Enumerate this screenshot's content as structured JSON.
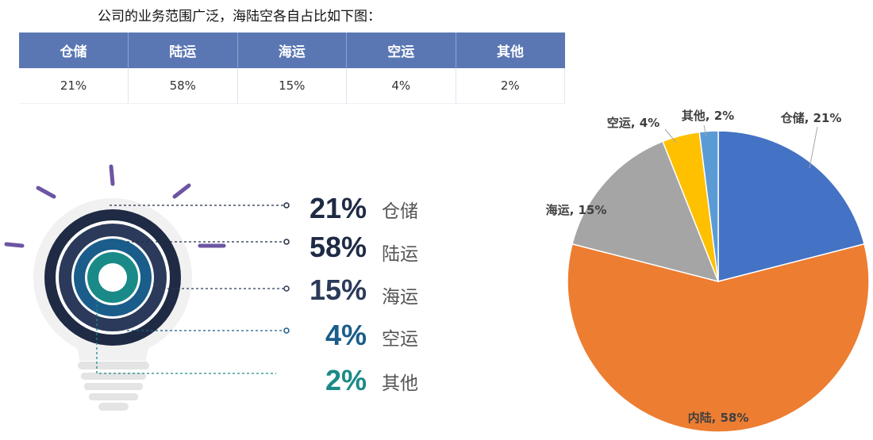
{
  "intro_text": "公司的业务范围广泛，海陆空各自占比如下图：",
  "table": {
    "headers": [
      "仓储",
      "陆运",
      "海运",
      "空运",
      "其他"
    ],
    "values": [
      "21%",
      "58%",
      "15%",
      "4%",
      "2%"
    ]
  },
  "infographic": [
    {
      "pct": "21%",
      "label": "仓储",
      "color": "#1f2a44"
    },
    {
      "pct": "58%",
      "label": "陆运",
      "color": "#1f2a44"
    },
    {
      "pct": "15%",
      "label": "海运",
      "color": "#2b3a5a"
    },
    {
      "pct": "4%",
      "label": "空运",
      "color": "#1a5d8a"
    },
    {
      "pct": "2%",
      "label": "其他",
      "color": "#1a8a88"
    }
  ],
  "chart_data": {
    "type": "pie",
    "slices": [
      {
        "label": "仓储, 21%",
        "value": 21,
        "color": "#4472c4"
      },
      {
        "label": "内陆, 58%",
        "value": 58,
        "color": "#ed7d31"
      },
      {
        "label": "海运, 15%",
        "value": 15,
        "color": "#a5a5a5"
      },
      {
        "label": "空运, 4%",
        "value": 4,
        "color": "#ffc000"
      },
      {
        "label": "其他, 2%",
        "value": 2,
        "color": "#5b9bd5"
      }
    ]
  }
}
